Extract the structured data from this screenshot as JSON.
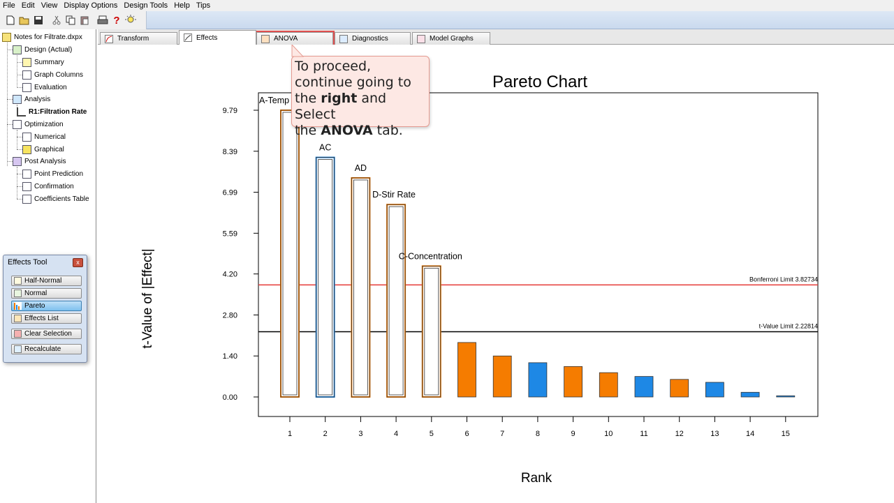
{
  "menu": [
    "File",
    "Edit",
    "View",
    "Display Options",
    "Design Tools",
    "Help",
    "Tips"
  ],
  "toolbar": {
    "icons": [
      "new-file-icon",
      "open-folder-icon",
      "save-icon",
      "cut-icon",
      "copy-icon",
      "paste-icon",
      "print-icon",
      "help-icon",
      "tip-bulb-icon"
    ]
  },
  "tree": {
    "root": "Notes for Filtrate.dxpx",
    "items": [
      {
        "label": "Design (Actual)"
      },
      {
        "label": "Summary"
      },
      {
        "label": "Graph Columns"
      },
      {
        "label": "Evaluation"
      },
      {
        "label": "Analysis"
      },
      {
        "label": "R1:Filtration Rate"
      },
      {
        "label": "Optimization"
      },
      {
        "label": "Numerical"
      },
      {
        "label": "Graphical"
      },
      {
        "label": "Post Analysis"
      },
      {
        "label": "Point Prediction"
      },
      {
        "label": "Confirmation"
      },
      {
        "label": "Coefficients Table"
      }
    ]
  },
  "effects_tool": {
    "title": "Effects Tool",
    "close": "x",
    "buttons": [
      "Half-Normal",
      "Normal",
      "Pareto",
      "Effects List",
      "Clear Selection",
      "Recalculate"
    ],
    "active": "Pareto"
  },
  "tabs": [
    "Transform",
    "Effects",
    "ANOVA",
    "Diagnostics",
    "Model Graphs"
  ],
  "active_tab": "Effects",
  "callout": {
    "line1": "To proceed,",
    "line2": "continue going to",
    "line3_pre": "the ",
    "line3_bold": "right",
    "line3_post": " and Select",
    "line4_pre": "the ",
    "line4_bold": "ANOVA",
    "line4_post": " tab."
  },
  "chart_data": {
    "type": "bar",
    "title": "Pareto Chart",
    "xlabel": "Rank",
    "ylabel": "t-Value of |Effect|",
    "ylim": [
      0,
      10.45
    ],
    "yticks": [
      "0.00",
      "1.40",
      "2.80",
      "4.20",
      "5.59",
      "6.99",
      "8.39",
      "9.79"
    ],
    "ytick_values": [
      0.0,
      1.4,
      2.8,
      4.2,
      5.59,
      6.99,
      8.39,
      9.79
    ],
    "categories": [
      "1",
      "2",
      "3",
      "4",
      "5",
      "6",
      "7",
      "8",
      "9",
      "10",
      "11",
      "12",
      "13",
      "14",
      "15"
    ],
    "values": [
      9.79,
      8.18,
      7.48,
      6.57,
      4.47,
      1.86,
      1.4,
      1.17,
      1.04,
      0.83,
      0.7,
      0.6,
      0.5,
      0.16,
      0.04
    ],
    "colors": [
      "#f57c00",
      "#1e88e5",
      "#f57c00",
      "#f57c00",
      "#f57c00",
      "#f57c00",
      "#f57c00",
      "#1e88e5",
      "#f57c00",
      "#f57c00",
      "#1e88e5",
      "#f57c00",
      "#1e88e5",
      "#1e88e5",
      "#1e88e5"
    ],
    "selected": [
      true,
      true,
      true,
      true,
      true,
      false,
      false,
      false,
      false,
      false,
      false,
      false,
      false,
      false,
      false
    ],
    "bar_labels": [
      "A-Temp",
      "AC",
      "AD",
      "D-Stir Rate",
      "C-Concentration",
      "",
      "",
      "",
      "",
      "",
      "",
      "",
      "",
      "",
      ""
    ],
    "limits": [
      {
        "label": "Bonferroni Limit 3.82734",
        "value": 3.82734,
        "color": "#e53935"
      },
      {
        "label": "t-Value Limit 2.22814",
        "value": 2.22814,
        "color": "#000000"
      }
    ]
  }
}
